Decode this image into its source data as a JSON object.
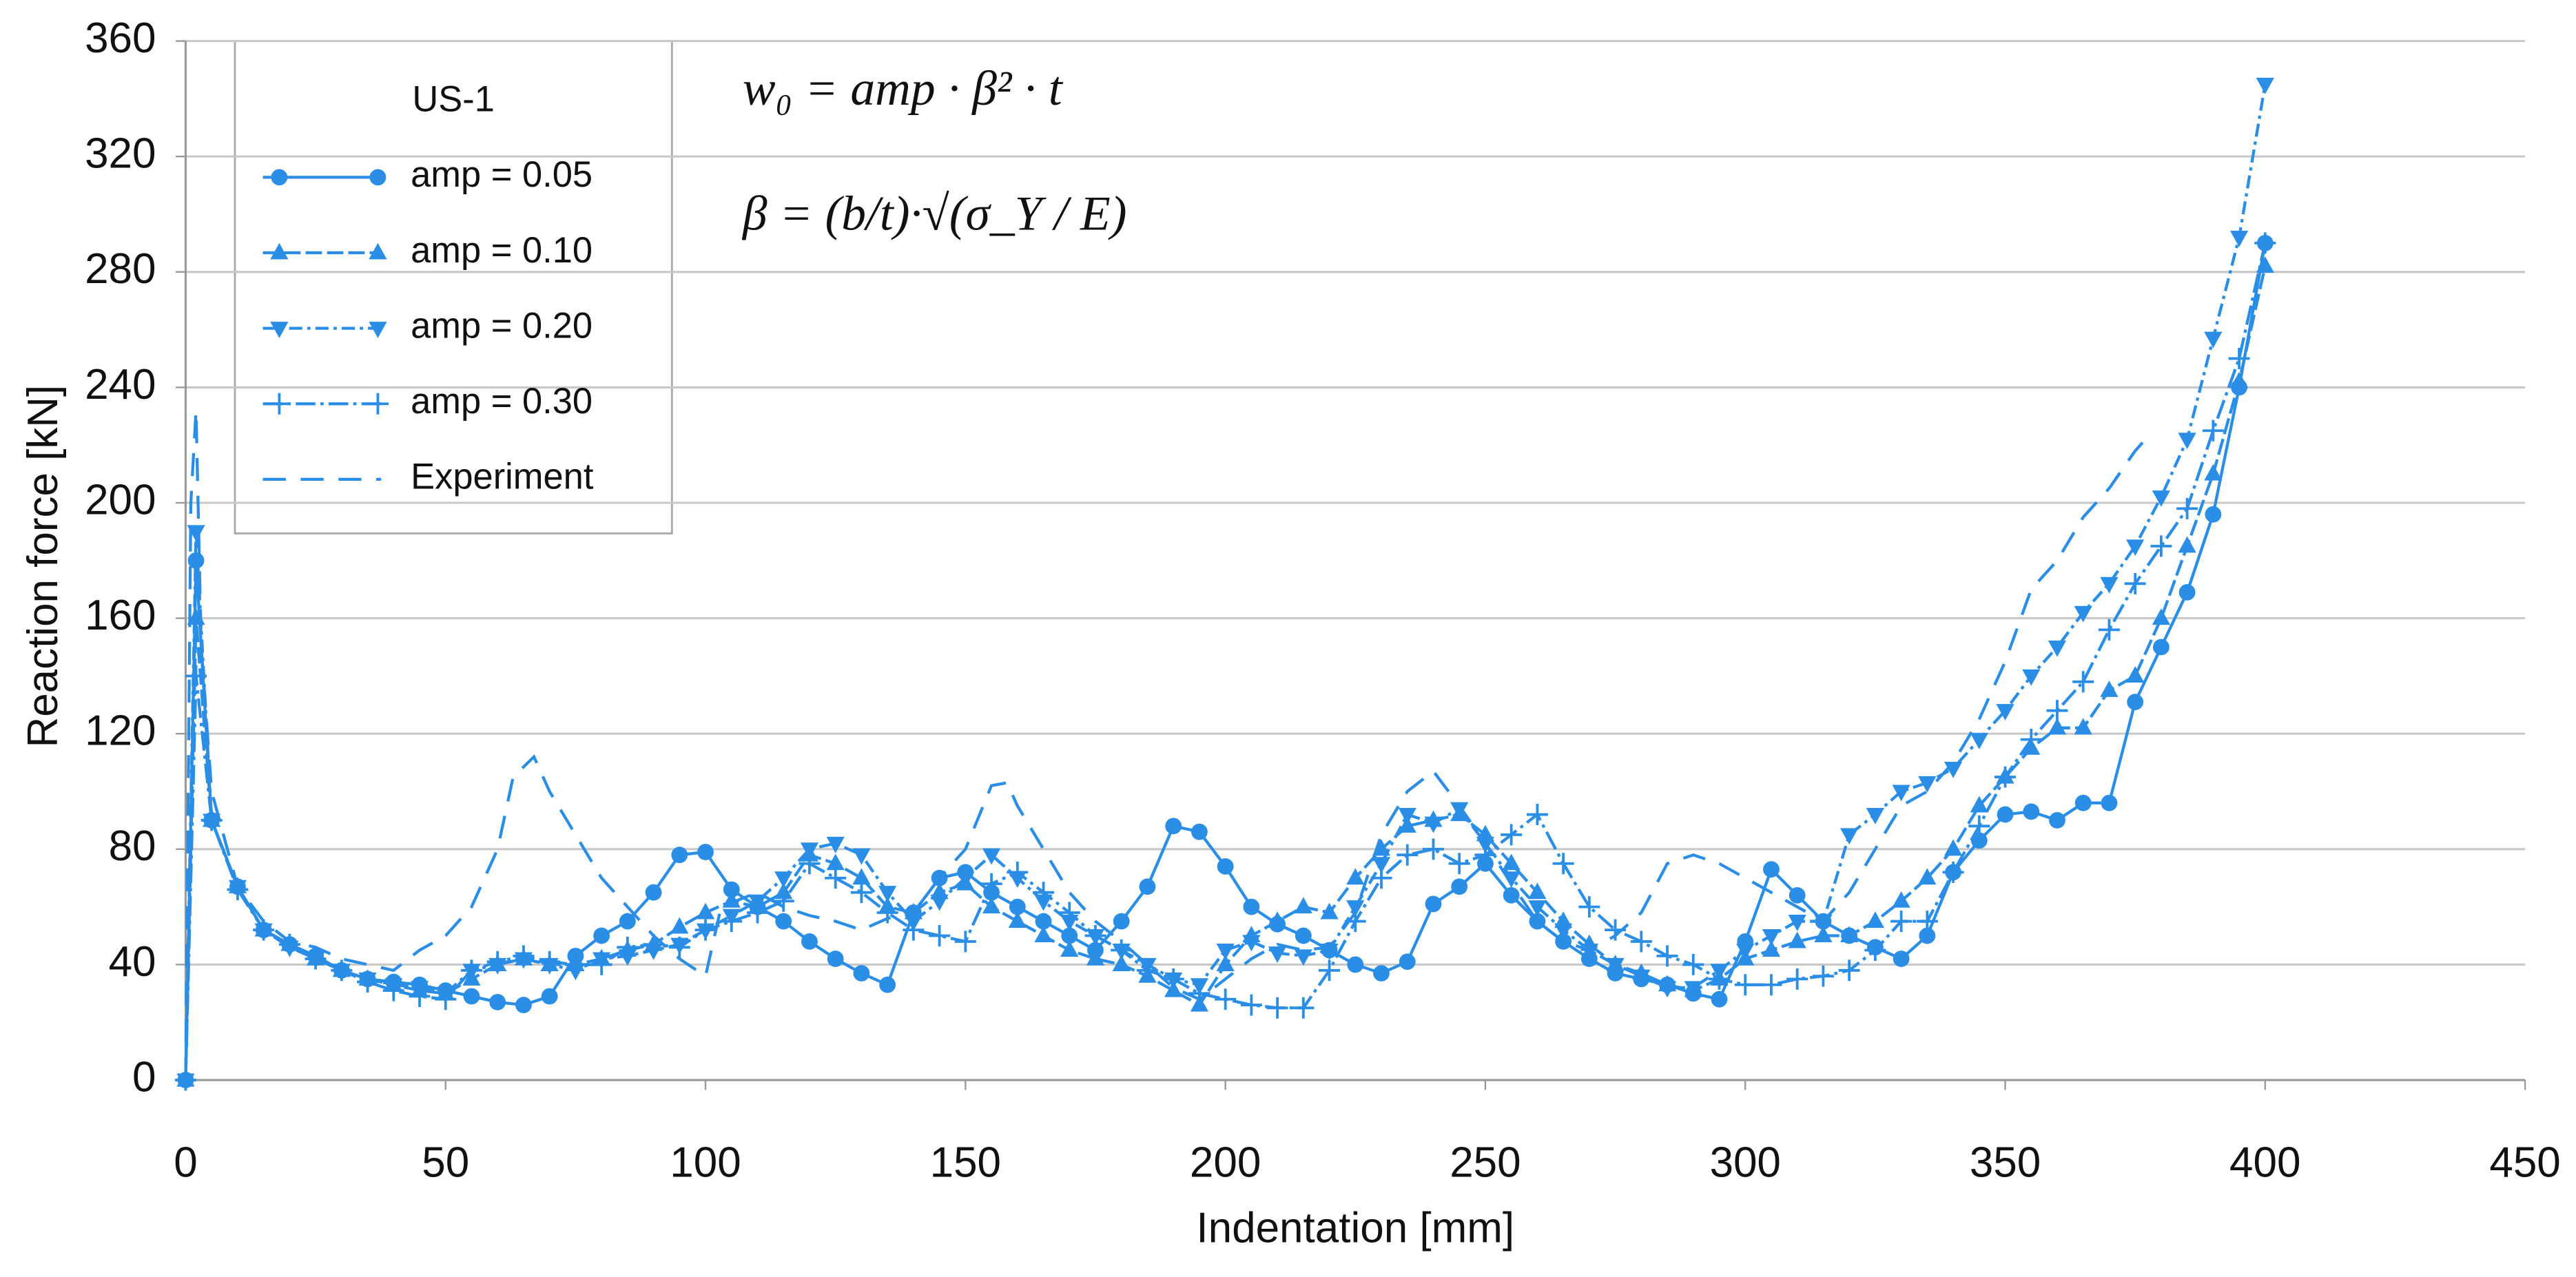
{
  "chart_data": {
    "type": "line",
    "x_label": "Indentation [mm]",
    "y_label": "Reaction force [kN]",
    "legend_title": "US-1",
    "legend": "upper left",
    "annotations": [
      "w₀ = amp · β² · t",
      "β = (b/t)·√(σ_Y / E)"
    ],
    "xlim": [
      0,
      450
    ],
    "ylim": [
      0,
      360
    ],
    "xticks": [
      0,
      50,
      100,
      150,
      200,
      250,
      300,
      350,
      400,
      450
    ],
    "yticks": [
      0,
      40,
      80,
      120,
      160,
      200,
      240,
      280,
      320,
      360
    ],
    "grid": true,
    "series": [
      {
        "name": "amp = 0.05",
        "color": "#2b8ee6",
        "marker": "circle",
        "dash": "none",
        "x": [
          0,
          2,
          5,
          10,
          15,
          20,
          25,
          30,
          35,
          40,
          45,
          50,
          55,
          60,
          65,
          70,
          75,
          80,
          85,
          90,
          95,
          100,
          105,
          110,
          115,
          120,
          125,
          130,
          135,
          140,
          145,
          150,
          155,
          160,
          165,
          170,
          175,
          180,
          185,
          190,
          195,
          200,
          205,
          210,
          215,
          220,
          225,
          230,
          235,
          240,
          245,
          250,
          255,
          260,
          265,
          270,
          275,
          280,
          285,
          290,
          295,
          300,
          305,
          310,
          315,
          320,
          325,
          330,
          335,
          340,
          345,
          350,
          355,
          360,
          365,
          370,
          375,
          380,
          385,
          390,
          395,
          400
        ],
        "values": [
          0,
          180,
          90,
          67,
          52,
          47,
          43,
          38,
          35,
          34,
          33,
          31,
          29,
          27,
          26,
          29,
          43,
          50,
          55,
          65,
          78,
          79,
          66,
          60,
          55,
          48,
          42,
          37,
          33,
          58,
          70,
          72,
          65,
          60,
          55,
          50,
          45,
          55,
          67,
          88,
          86,
          74,
          60,
          54,
          50,
          45,
          40,
          37,
          41,
          61,
          67,
          75,
          64,
          55,
          48,
          42,
          37,
          35,
          33,
          30,
          28,
          48,
          73,
          64,
          55,
          50,
          46,
          42,
          50,
          72,
          83,
          92,
          93,
          90,
          96,
          96,
          131,
          150,
          169,
          196,
          240,
          290
        ]
      },
      {
        "name": "amp = 0.10",
        "color": "#2b8ee6",
        "marker": "triangle-up",
        "dash": "10,3",
        "x": [
          0,
          2,
          5,
          10,
          15,
          20,
          25,
          30,
          35,
          40,
          45,
          50,
          55,
          60,
          65,
          70,
          75,
          80,
          85,
          90,
          95,
          100,
          105,
          110,
          115,
          120,
          125,
          130,
          135,
          140,
          145,
          150,
          155,
          160,
          165,
          170,
          175,
          180,
          185,
          190,
          195,
          200,
          205,
          210,
          215,
          220,
          225,
          230,
          235,
          240,
          245,
          250,
          255,
          260,
          265,
          270,
          275,
          280,
          285,
          290,
          295,
          300,
          305,
          310,
          315,
          320,
          325,
          330,
          335,
          340,
          345,
          350,
          355,
          360,
          365,
          370,
          375,
          380,
          385,
          390,
          395,
          400
        ],
        "values": [
          0,
          160,
          90,
          67,
          52,
          47,
          42,
          38,
          35,
          33,
          31,
          30,
          35,
          40,
          42,
          40,
          40,
          42,
          45,
          47,
          53,
          58,
          62,
          60,
          65,
          78,
          75,
          70,
          60,
          58,
          65,
          68,
          60,
          55,
          50,
          45,
          42,
          40,
          36,
          31,
          26,
          40,
          50,
          55,
          60,
          58,
          70,
          80,
          88,
          90,
          92,
          85,
          75,
          65,
          55,
          47,
          40,
          37,
          33,
          31,
          35,
          42,
          45,
          48,
          50,
          50,
          55,
          62,
          70,
          80,
          95,
          105,
          115,
          122,
          122,
          135,
          140,
          160,
          185,
          210,
          242,
          282
        ]
      },
      {
        "name": "amp = 0.20",
        "color": "#2b8ee6",
        "marker": "triangle-down",
        "dash": "8,3,2,3",
        "x": [
          0,
          2,
          5,
          10,
          15,
          20,
          25,
          30,
          35,
          40,
          45,
          50,
          55,
          60,
          65,
          70,
          75,
          80,
          85,
          90,
          95,
          100,
          105,
          110,
          115,
          120,
          125,
          130,
          135,
          140,
          145,
          150,
          155,
          160,
          165,
          170,
          175,
          180,
          185,
          190,
          195,
          200,
          205,
          210,
          215,
          220,
          225,
          230,
          235,
          240,
          245,
          250,
          255,
          260,
          265,
          270,
          275,
          280,
          285,
          290,
          295,
          300,
          305,
          310,
          315,
          320,
          325,
          330,
          335,
          340,
          345,
          350,
          355,
          360,
          365,
          370,
          375,
          380,
          385,
          390,
          395,
          400
        ],
        "values": [
          0,
          190,
          90,
          67,
          52,
          46,
          42,
          38,
          35,
          33,
          32,
          30,
          38,
          40,
          42,
          40,
          38,
          42,
          43,
          45,
          47,
          52,
          57,
          62,
          70,
          80,
          82,
          78,
          65,
          55,
          62,
          70,
          78,
          70,
          62,
          55,
          50,
          45,
          40,
          35,
          33,
          45,
          48,
          44,
          43,
          45,
          60,
          75,
          92,
          89,
          94,
          82,
          70,
          60,
          52,
          45,
          40,
          36,
          32,
          32,
          38,
          45,
          50,
          55,
          55,
          85,
          92,
          100,
          103,
          108,
          118,
          128,
          140,
          150,
          162,
          172,
          185,
          202,
          222,
          257,
          292,
          345
        ]
      },
      {
        "name": "amp = 0.30",
        "color": "#2b8ee6",
        "marker": "plus",
        "dash": "12,3,2,3",
        "x": [
          0,
          2,
          5,
          10,
          15,
          20,
          25,
          30,
          35,
          40,
          45,
          50,
          55,
          60,
          65,
          70,
          75,
          80,
          85,
          90,
          95,
          100,
          105,
          110,
          115,
          120,
          125,
          130,
          135,
          140,
          145,
          150,
          155,
          160,
          165,
          170,
          175,
          180,
          185,
          190,
          195,
          200,
          205,
          210,
          215,
          220,
          225,
          230,
          235,
          240,
          245,
          250,
          255,
          260,
          265,
          270,
          275,
          280,
          285,
          290,
          295,
          300,
          305,
          310,
          315,
          320,
          325,
          330,
          335,
          340,
          345,
          350,
          355,
          360,
          365,
          370,
          375,
          380,
          385,
          390,
          395,
          400
        ],
        "values": [
          0,
          140,
          90,
          66,
          52,
          47,
          42,
          38,
          34,
          31,
          29,
          28,
          38,
          41,
          43,
          41,
          40,
          40,
          46,
          47,
          46,
          52,
          55,
          58,
          62,
          75,
          70,
          65,
          58,
          52,
          50,
          48,
          68,
          72,
          65,
          58,
          50,
          45,
          38,
          35,
          30,
          28,
          26,
          25,
          25,
          38,
          55,
          70,
          78,
          80,
          75,
          78,
          85,
          92,
          75,
          60,
          52,
          48,
          43,
          40,
          35,
          33,
          33,
          35,
          36,
          38,
          45,
          55,
          55,
          72,
          88,
          105,
          118,
          128,
          138,
          156,
          172,
          185,
          198,
          225,
          250,
          290
        ]
      },
      {
        "name": "Experiment",
        "color": "#2b8ee6",
        "marker": "none",
        "dash": "14,9",
        "x": [
          0,
          1,
          2,
          3,
          5,
          10,
          15,
          20,
          25,
          30,
          35,
          40,
          45,
          50,
          55,
          60,
          63,
          67,
          70,
          75,
          80,
          85,
          90,
          95,
          100,
          103,
          110,
          115,
          120,
          125,
          130,
          135,
          140,
          145,
          150,
          155,
          158,
          160,
          165,
          170,
          175,
          180,
          185,
          190,
          195,
          200,
          205,
          210,
          215,
          220,
          225,
          230,
          235,
          240,
          245,
          250,
          255,
          260,
          265,
          270,
          275,
          280,
          285,
          290,
          295,
          300,
          305,
          310,
          315,
          320,
          325,
          330,
          335,
          340,
          345,
          350,
          355,
          360,
          365,
          370,
          375,
          377
        ],
        "values": [
          0,
          200,
          232,
          150,
          100,
          67,
          55,
          48,
          46,
          42,
          40,
          38,
          45,
          50,
          60,
          80,
          105,
          112,
          100,
          85,
          70,
          60,
          50,
          42,
          36,
          60,
          65,
          60,
          57,
          55,
          52,
          56,
          58,
          70,
          80,
          102,
          103,
          95,
          80,
          65,
          55,
          48,
          40,
          32,
          28,
          35,
          42,
          47,
          45,
          46,
          58,
          85,
          100,
          107,
          95,
          82,
          68,
          55,
          48,
          45,
          50,
          58,
          75,
          78,
          75,
          70,
          65,
          60,
          55,
          65,
          80,
          95,
          100,
          110,
          125,
          145,
          170,
          180,
          195,
          205,
          218,
          222
        ]
      }
    ]
  }
}
